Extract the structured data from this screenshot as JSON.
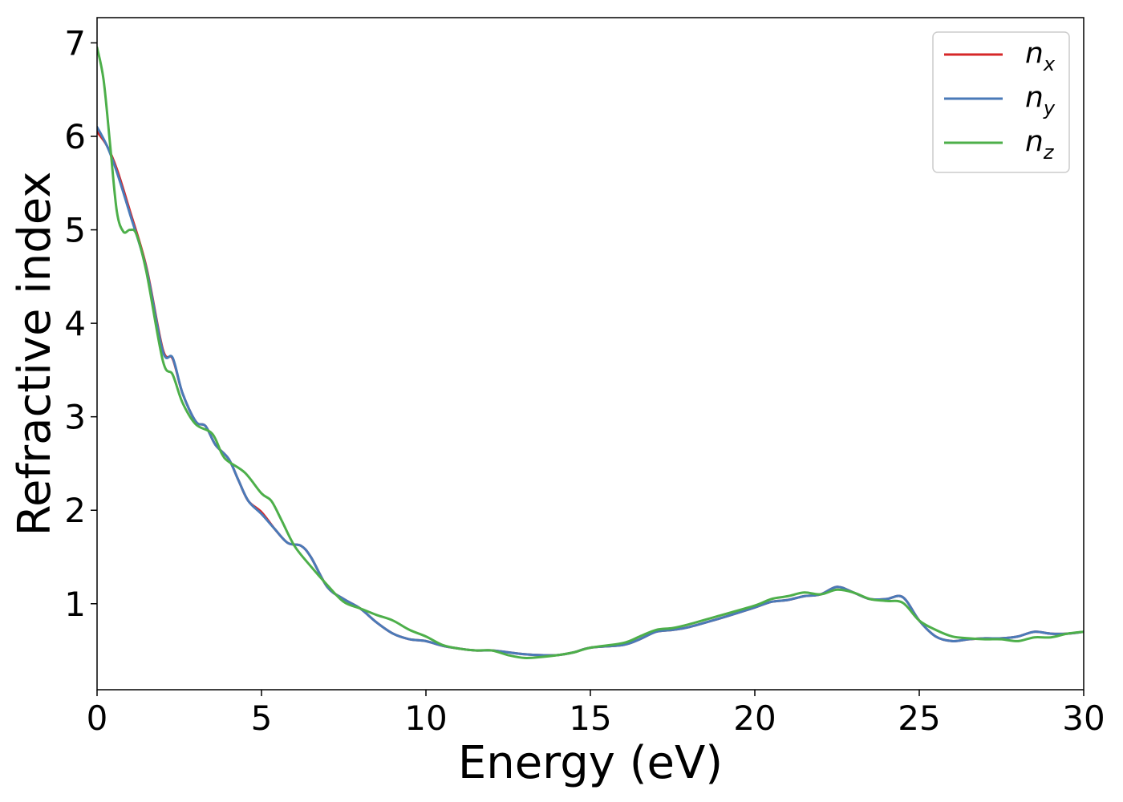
{
  "chart_data": {
    "type": "line",
    "title": "",
    "xlabel": "Energy (eV)",
    "ylabel": "Refractive index",
    "xlim": [
      0,
      30
    ],
    "ylim": [
      0.08,
      7.27
    ],
    "xticks": [
      0,
      5,
      10,
      15,
      20,
      25,
      30
    ],
    "yticks": [
      1,
      2,
      3,
      4,
      5,
      6,
      7
    ],
    "grid": false,
    "legend_position": "top-right",
    "series": [
      {
        "name": "n",
        "subscript": "x",
        "color": "#d62728",
        "x": [
          0,
          0.3,
          0.6,
          1.0,
          1.5,
          2.0,
          2.3,
          2.6,
          3.0,
          3.3,
          3.6,
          4.0,
          4.3,
          4.6,
          5.0,
          5.4,
          5.8,
          6.2,
          6.5,
          7.0,
          7.5,
          8.0,
          8.5,
          9.0,
          9.5,
          10.0,
          10.5,
          11.0,
          11.5,
          12.0,
          12.5,
          13.0,
          13.5,
          14.0,
          14.5,
          15.0,
          16.0,
          16.5,
          17.0,
          17.5,
          18.0,
          19.0,
          20.0,
          20.5,
          21.0,
          21.5,
          22.0,
          22.5,
          23.0,
          23.5,
          24.0,
          24.5,
          25.0,
          25.5,
          26.0,
          26.5,
          27.0,
          27.5,
          28.0,
          28.5,
          29.0,
          29.5,
          30.0
        ],
        "values": [
          6.05,
          5.9,
          5.65,
          5.2,
          4.6,
          3.72,
          3.62,
          3.25,
          2.95,
          2.9,
          2.7,
          2.55,
          2.32,
          2.1,
          1.98,
          1.8,
          1.65,
          1.62,
          1.5,
          1.18,
          1.05,
          0.95,
          0.8,
          0.68,
          0.62,
          0.6,
          0.55,
          0.52,
          0.5,
          0.5,
          0.48,
          0.46,
          0.45,
          0.45,
          0.48,
          0.53,
          0.56,
          0.62,
          0.7,
          0.72,
          0.75,
          0.85,
          0.96,
          1.02,
          1.04,
          1.08,
          1.1,
          1.18,
          1.12,
          1.05,
          1.05,
          1.07,
          0.82,
          0.65,
          0.6,
          0.62,
          0.63,
          0.63,
          0.65,
          0.7,
          0.68,
          0.68,
          0.7
        ]
      },
      {
        "name": "n",
        "subscript": "y",
        "color": "#4a7ab8",
        "x": [
          0,
          0.3,
          0.6,
          1.0,
          1.5,
          2.0,
          2.3,
          2.6,
          3.0,
          3.3,
          3.6,
          4.0,
          4.3,
          4.6,
          5.0,
          5.4,
          5.8,
          6.2,
          6.5,
          7.0,
          7.5,
          8.0,
          8.5,
          9.0,
          9.5,
          10.0,
          10.5,
          11.0,
          11.5,
          12.0,
          12.5,
          13.0,
          13.5,
          14.0,
          14.5,
          15.0,
          16.0,
          16.5,
          17.0,
          17.5,
          18.0,
          19.0,
          20.0,
          20.5,
          21.0,
          21.5,
          22.0,
          22.5,
          23.0,
          23.5,
          24.0,
          24.5,
          25.0,
          25.5,
          26.0,
          26.5,
          27.0,
          27.5,
          28.0,
          28.5,
          29.0,
          29.5,
          30.0
        ],
        "values": [
          6.1,
          5.9,
          5.62,
          5.17,
          4.58,
          3.7,
          3.63,
          3.25,
          2.95,
          2.9,
          2.7,
          2.55,
          2.32,
          2.1,
          1.96,
          1.8,
          1.65,
          1.62,
          1.5,
          1.18,
          1.05,
          0.95,
          0.8,
          0.68,
          0.62,
          0.6,
          0.55,
          0.52,
          0.5,
          0.5,
          0.48,
          0.46,
          0.45,
          0.45,
          0.48,
          0.53,
          0.56,
          0.62,
          0.7,
          0.72,
          0.75,
          0.85,
          0.96,
          1.02,
          1.04,
          1.08,
          1.1,
          1.18,
          1.12,
          1.05,
          1.05,
          1.07,
          0.82,
          0.65,
          0.6,
          0.62,
          0.63,
          0.63,
          0.65,
          0.7,
          0.68,
          0.68,
          0.7
        ]
      },
      {
        "name": "n",
        "subscript": "z",
        "color": "#4daf4a",
        "x": [
          0,
          0.2,
          0.4,
          0.6,
          0.8,
          1.0,
          1.2,
          1.5,
          2.0,
          2.3,
          2.6,
          3.0,
          3.5,
          3.8,
          4.0,
          4.5,
          5.0,
          5.3,
          5.6,
          6.0,
          6.5,
          7.0,
          7.5,
          8.0,
          8.5,
          9.0,
          9.5,
          10.0,
          10.5,
          11.0,
          11.5,
          12.0,
          12.5,
          13.0,
          13.5,
          14.0,
          14.5,
          15.0,
          16.0,
          16.5,
          17.0,
          17.5,
          18.0,
          19.0,
          20.0,
          20.5,
          21.0,
          21.5,
          22.0,
          22.5,
          23.0,
          23.5,
          24.0,
          24.5,
          25.0,
          25.5,
          26.0,
          26.5,
          27.0,
          27.5,
          28.0,
          28.5,
          29.0,
          29.5,
          30.0
        ],
        "values": [
          6.95,
          6.6,
          5.9,
          5.2,
          4.98,
          5.0,
          4.95,
          4.55,
          3.6,
          3.45,
          3.15,
          2.92,
          2.82,
          2.6,
          2.52,
          2.4,
          2.18,
          2.1,
          1.9,
          1.62,
          1.4,
          1.2,
          1.02,
          0.95,
          0.88,
          0.82,
          0.72,
          0.65,
          0.56,
          0.52,
          0.5,
          0.5,
          0.45,
          0.42,
          0.43,
          0.45,
          0.48,
          0.53,
          0.58,
          0.65,
          0.72,
          0.74,
          0.78,
          0.88,
          0.98,
          1.05,
          1.08,
          1.12,
          1.1,
          1.15,
          1.12,
          1.05,
          1.03,
          1.01,
          0.82,
          0.72,
          0.65,
          0.63,
          0.62,
          0.62,
          0.6,
          0.64,
          0.64,
          0.68,
          0.7
        ]
      }
    ]
  }
}
